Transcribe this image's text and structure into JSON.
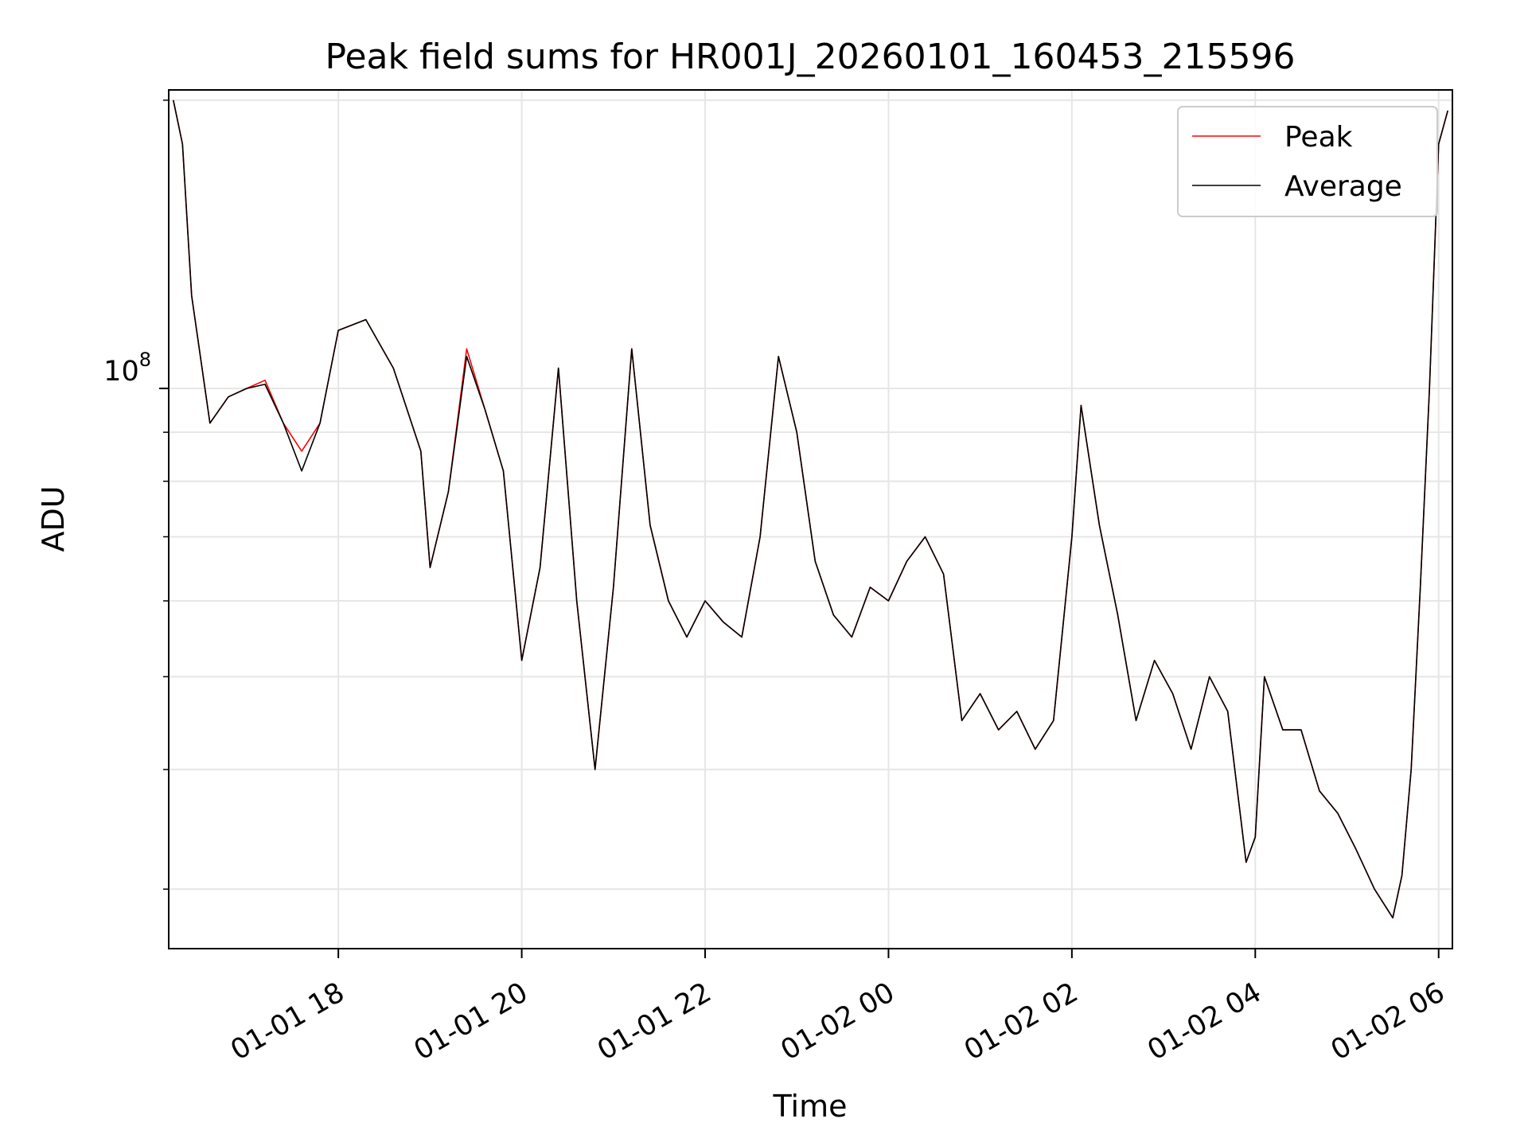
{
  "chart_data": {
    "type": "line",
    "title": "Peak field sums for HR001J_20260101_160453_215596",
    "xlabel": "Time",
    "ylabel": "ADU",
    "yscale": "log",
    "ytick_base": "10",
    "ytick_exp": "8",
    "ylim": [
      26000000,
      205000000
    ],
    "x_unit": "hours since 2026-01-01 00:00",
    "xlim": [
      16.15,
      30.15
    ],
    "xticks": [
      {
        "value": 18,
        "label": "01-01 18"
      },
      {
        "value": 20,
        "label": "01-01 20"
      },
      {
        "value": 22,
        "label": "01-01 22"
      },
      {
        "value": 24,
        "label": "01-02 00"
      },
      {
        "value": 26,
        "label": "01-02 02"
      },
      {
        "value": 28,
        "label": "01-02 04"
      },
      {
        "value": 30,
        "label": "01-02 06"
      }
    ],
    "minor_yticks": [
      30000000,
      40000000,
      50000000,
      60000000,
      70000000,
      80000000,
      90000000,
      200000000
    ],
    "grid": true,
    "legend": {
      "position": "top-right"
    },
    "series": [
      {
        "name": "Peak",
        "color": "#ff0000",
        "x": [
          16.2,
          16.3,
          16.4,
          16.6,
          16.8,
          17.0,
          17.2,
          17.4,
          17.6,
          17.8,
          18.0,
          18.3,
          18.6,
          18.9,
          19.0,
          19.2,
          19.4,
          19.6,
          19.8,
          20.0,
          20.2,
          20.4,
          20.6,
          20.8,
          21.0,
          21.2,
          21.4,
          21.6,
          21.8,
          22.0,
          22.2,
          22.4,
          22.6,
          22.8,
          23.0,
          23.2,
          23.4,
          23.6,
          23.8,
          24.0,
          24.2,
          24.4,
          24.6,
          24.8,
          25.0,
          25.2,
          25.4,
          25.6,
          25.8,
          26.0,
          26.1,
          26.3,
          26.5,
          26.7,
          26.9,
          27.1,
          27.3,
          27.5,
          27.7,
          27.9,
          28.0,
          28.1,
          28.3,
          28.5,
          28.7,
          28.9,
          29.1,
          29.3,
          29.5,
          29.6,
          29.7,
          29.8,
          29.9,
          30.0,
          30.1
        ],
        "values": [
          200000000,
          180000000,
          125000000,
          92000000,
          98000000,
          100000000,
          102000000,
          92000000,
          86000000,
          92000000,
          115000000,
          118000000,
          105000000,
          86000000,
          65000000,
          78000000,
          110000000,
          95000000,
          82000000,
          52000000,
          65000000,
          105000000,
          60000000,
          40000000,
          62000000,
          110000000,
          72000000,
          60000000,
          55000000,
          60000000,
          57000000,
          55000000,
          70000000,
          108000000,
          90000000,
          66000000,
          58000000,
          55000000,
          62000000,
          60000000,
          66000000,
          70000000,
          64000000,
          45000000,
          48000000,
          44000000,
          46000000,
          42000000,
          45000000,
          70000000,
          96000000,
          72000000,
          58000000,
          45000000,
          52000000,
          48000000,
          42000000,
          50000000,
          46000000,
          32000000,
          34000000,
          50000000,
          44000000,
          44000000,
          38000000,
          36000000,
          33000000,
          30000000,
          28000000,
          31000000,
          40000000,
          62000000,
          100000000,
          180000000,
          195000000
        ]
      },
      {
        "name": "Average",
        "color": "#000000",
        "x": [
          16.2,
          16.3,
          16.4,
          16.6,
          16.8,
          17.0,
          17.2,
          17.4,
          17.6,
          17.8,
          18.0,
          18.3,
          18.6,
          18.9,
          19.0,
          19.2,
          19.4,
          19.6,
          19.8,
          20.0,
          20.2,
          20.4,
          20.6,
          20.8,
          21.0,
          21.2,
          21.4,
          21.6,
          21.8,
          22.0,
          22.2,
          22.4,
          22.6,
          22.8,
          23.0,
          23.2,
          23.4,
          23.6,
          23.8,
          24.0,
          24.2,
          24.4,
          24.6,
          24.8,
          25.0,
          25.2,
          25.4,
          25.6,
          25.8,
          26.0,
          26.1,
          26.3,
          26.5,
          26.7,
          26.9,
          27.1,
          27.3,
          27.5,
          27.7,
          27.9,
          28.0,
          28.1,
          28.3,
          28.5,
          28.7,
          28.9,
          29.1,
          29.3,
          29.5,
          29.6,
          29.7,
          29.8,
          29.9,
          30.0,
          30.1
        ],
        "values": [
          200000000,
          180000000,
          125000000,
          92000000,
          98000000,
          100000000,
          101000000,
          92000000,
          82000000,
          92000000,
          115000000,
          118000000,
          105000000,
          86000000,
          65000000,
          78000000,
          108000000,
          95000000,
          82000000,
          52000000,
          65000000,
          105000000,
          60000000,
          40000000,
          62000000,
          110000000,
          72000000,
          60000000,
          55000000,
          60000000,
          57000000,
          55000000,
          70000000,
          108000000,
          90000000,
          66000000,
          58000000,
          55000000,
          62000000,
          60000000,
          66000000,
          70000000,
          64000000,
          45000000,
          48000000,
          44000000,
          46000000,
          42000000,
          45000000,
          70000000,
          96000000,
          72000000,
          58000000,
          45000000,
          52000000,
          48000000,
          42000000,
          50000000,
          46000000,
          32000000,
          34000000,
          50000000,
          44000000,
          44000000,
          38000000,
          36000000,
          33000000,
          30000000,
          28000000,
          31000000,
          40000000,
          62000000,
          100000000,
          180000000,
          195000000
        ]
      }
    ]
  }
}
